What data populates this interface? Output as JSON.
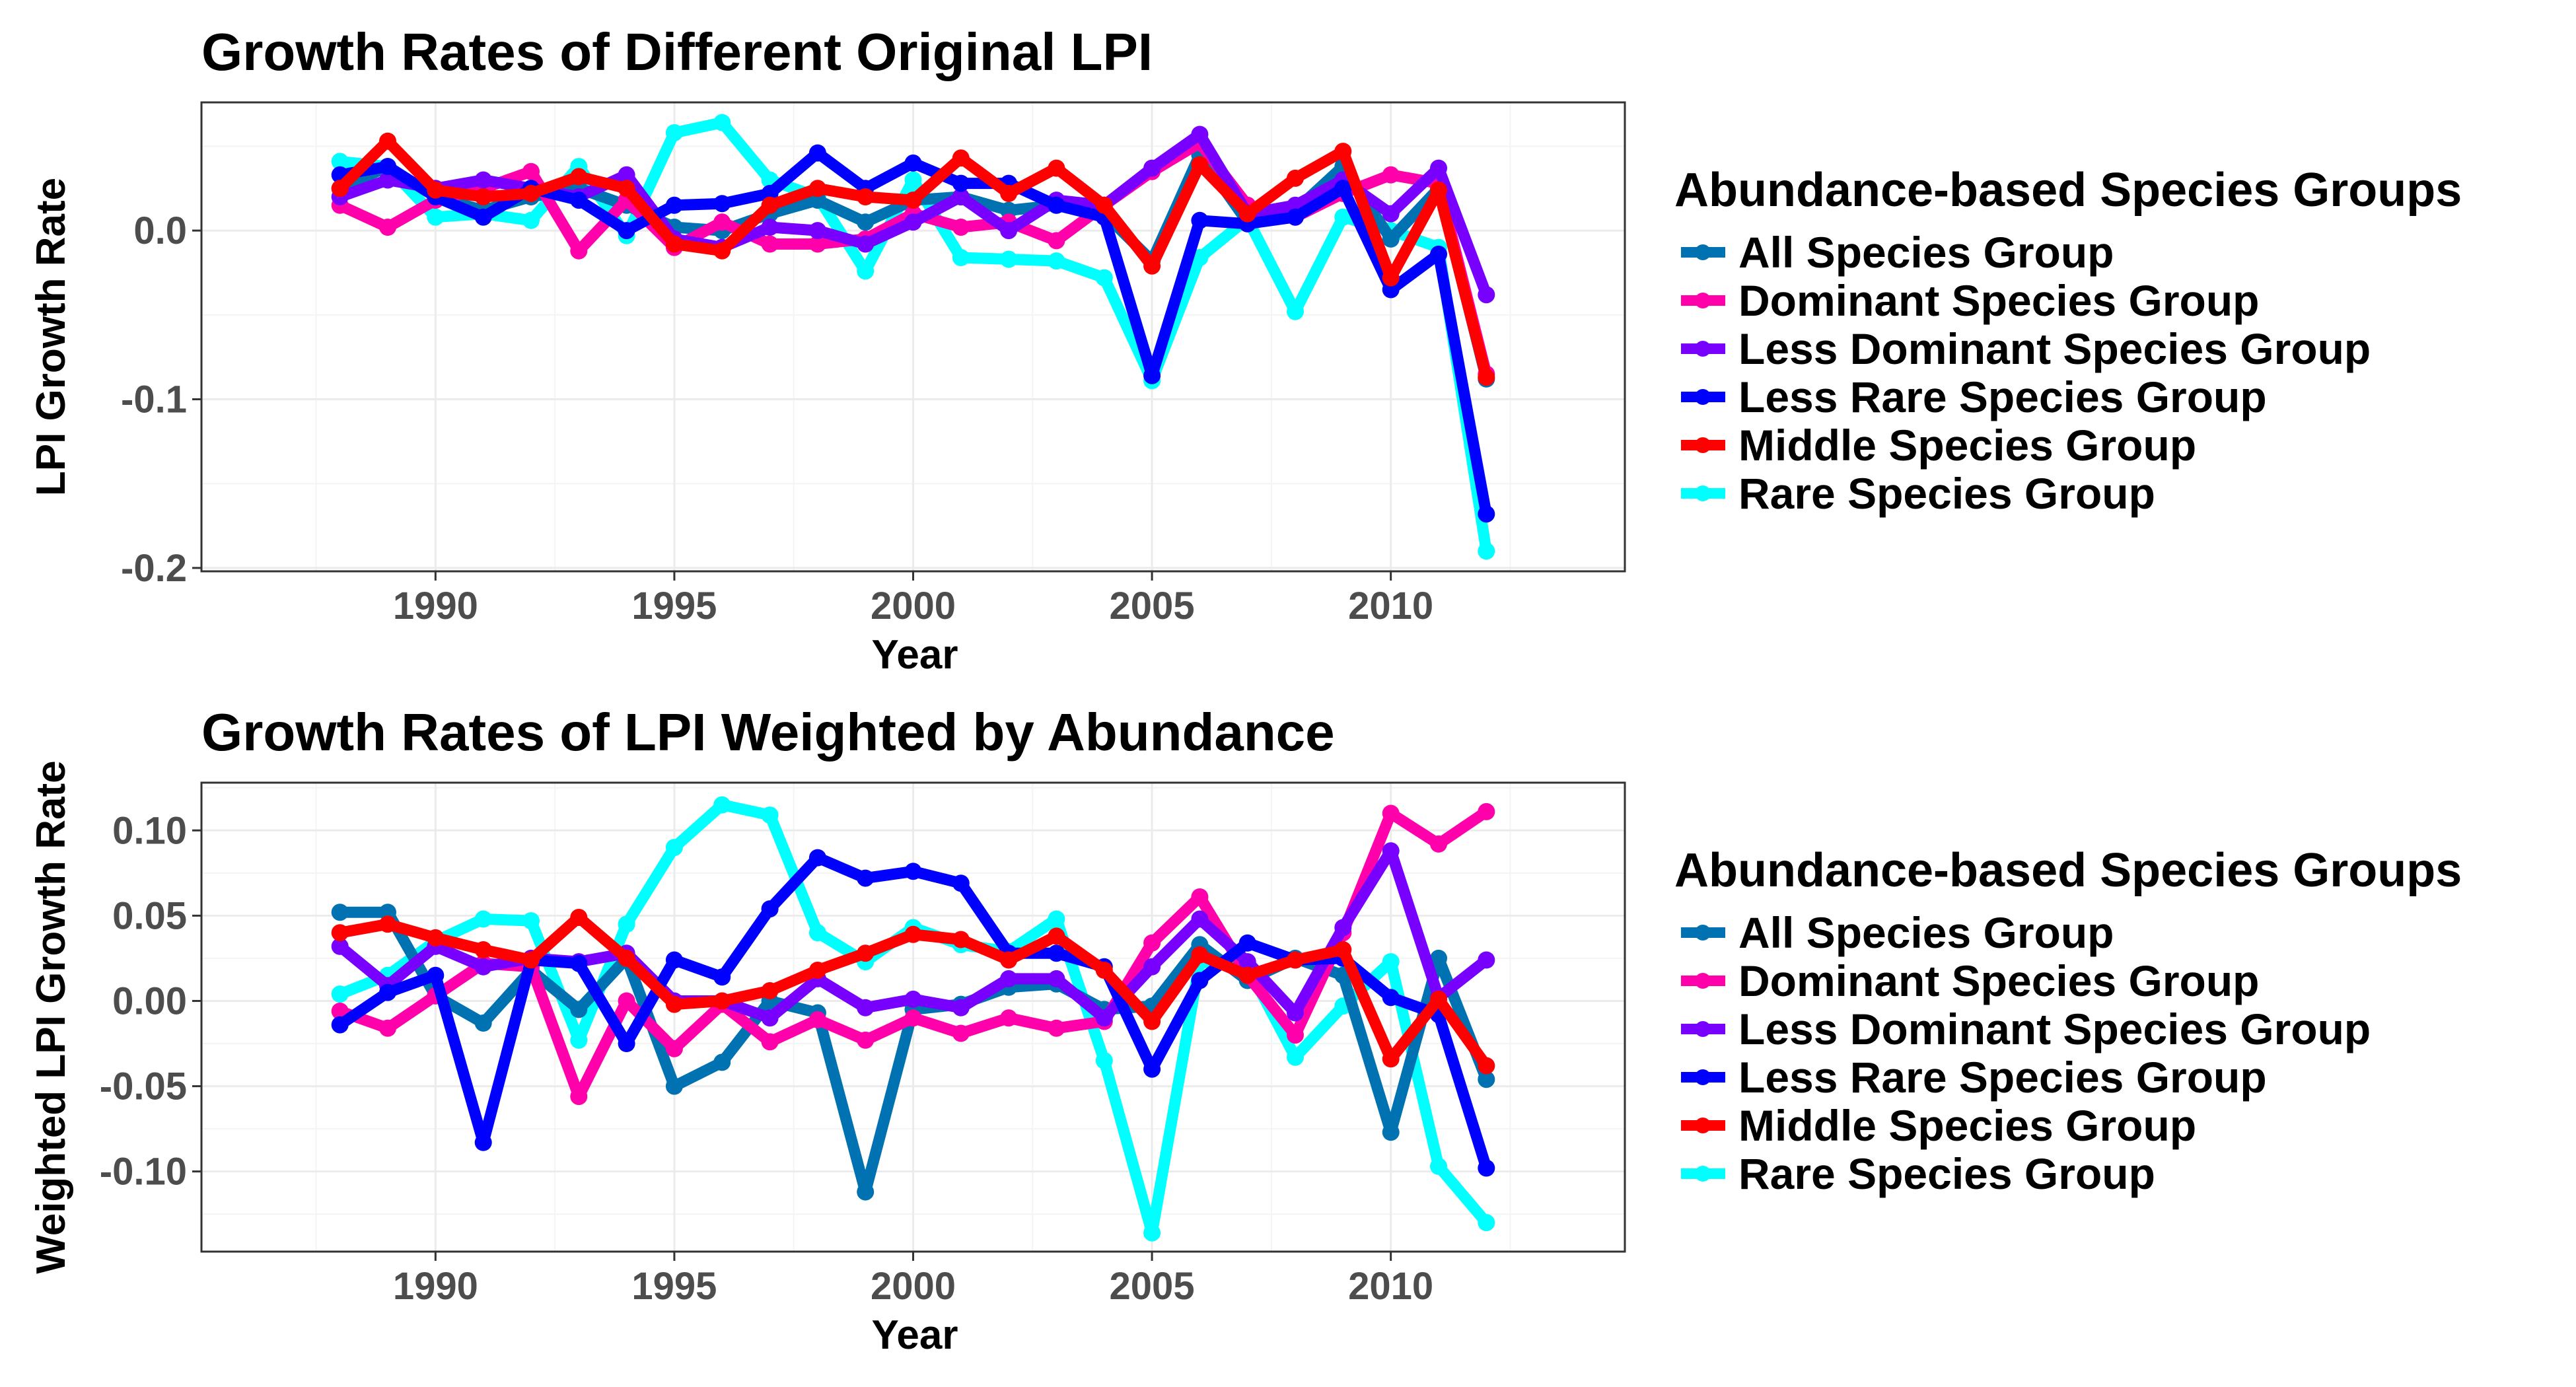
{
  "chart_data": [
    {
      "type": "line",
      "title": "Growth Rates of Different Original LPI",
      "xlabel": "Year",
      "ylabel": "LPI Growth Rate",
      "x": [
        1988,
        1989,
        1990,
        1991,
        1992,
        1993,
        1994,
        1995,
        1996,
        1997,
        1998,
        1999,
        2000,
        2001,
        2002,
        2003,
        2004,
        2005,
        2006,
        2007,
        2008,
        2009,
        2010,
        2011,
        2012
      ],
      "xlim": [
        1985.1,
        2014.9
      ],
      "ylim": [
        -0.202,
        0.076
      ],
      "xticks": [
        1990,
        1995,
        2000,
        2005,
        2010
      ],
      "yticks": [
        0.0,
        -0.1,
        -0.2
      ],
      "ytick_labels": [
        "0.0",
        "-0.1",
        "-0.2"
      ],
      "grid": true,
      "legend_title": "Abundance-based Species Groups",
      "legend_position": "right",
      "series": [
        {
          "name": "All Species Group",
          "color": "#0072B2",
          "values": [
            0.025,
            0.038,
            0.02,
            0.012,
            0.02,
            0.025,
            0.015,
            0.002,
            0.0,
            0.01,
            0.018,
            0.005,
            0.018,
            0.02,
            0.012,
            0.015,
            0.01,
            -0.018,
            0.045,
            0.005,
            0.012,
            0.038,
            -0.005,
            0.025,
            -0.088
          ]
        },
        {
          "name": "Dominant Species Group",
          "color": "#FF00AA",
          "values": [
            0.015,
            0.002,
            0.018,
            0.025,
            0.035,
            -0.012,
            0.018,
            -0.01,
            0.005,
            -0.008,
            -0.008,
            -0.005,
            0.01,
            0.002,
            0.005,
            -0.006,
            0.015,
            0.035,
            0.052,
            0.015,
            0.008,
            0.022,
            0.033,
            0.028,
            -0.085
          ]
        },
        {
          "name": "Less Dominant Species Group",
          "color": "#7700FF",
          "values": [
            0.02,
            0.03,
            0.025,
            0.03,
            0.025,
            0.02,
            0.033,
            -0.005,
            -0.01,
            0.002,
            0.0,
            -0.008,
            0.005,
            0.02,
            0.0,
            0.018,
            0.015,
            0.037,
            0.057,
            0.01,
            0.015,
            0.03,
            0.01,
            0.037,
            -0.038
          ]
        },
        {
          "name": "Less Rare Species Group",
          "color": "#0000FF",
          "values": [
            0.033,
            0.038,
            0.02,
            0.008,
            0.025,
            0.018,
            0.0,
            0.015,
            0.016,
            0.022,
            0.046,
            0.025,
            0.04,
            0.028,
            0.028,
            0.015,
            0.008,
            -0.086,
            0.006,
            0.004,
            0.008,
            0.025,
            -0.035,
            -0.014,
            -0.168
          ]
        },
        {
          "name": "Middle Species Group",
          "color": "#FF0000",
          "values": [
            0.025,
            0.053,
            0.024,
            0.02,
            0.022,
            0.032,
            0.025,
            -0.008,
            -0.012,
            0.015,
            0.025,
            0.02,
            0.018,
            0.043,
            0.022,
            0.037,
            0.015,
            -0.021,
            0.039,
            0.01,
            0.031,
            0.047,
            -0.028,
            0.024,
            -0.087
          ]
        },
        {
          "name": "Rare Species Group",
          "color": "#00FFFF",
          "values": [
            0.041,
            0.038,
            0.008,
            0.01,
            0.006,
            0.038,
            -0.003,
            0.058,
            0.064,
            0.03,
            0.02,
            -0.024,
            0.03,
            -0.016,
            -0.017,
            -0.018,
            -0.028,
            -0.089,
            -0.016,
            0.007,
            -0.048,
            0.008,
            0.0,
            -0.01,
            -0.19
          ]
        }
      ]
    },
    {
      "type": "line",
      "title": "Growth Rates of LPI Weighted by Abundance",
      "xlabel": "Year",
      "ylabel": "Weighted LPI Growth Rate",
      "x": [
        1988,
        1989,
        1990,
        1991,
        1992,
        1993,
        1994,
        1995,
        1996,
        1997,
        1998,
        1999,
        2000,
        2001,
        2002,
        2003,
        2004,
        2005,
        2006,
        2007,
        2008,
        2009,
        2010,
        2011,
        2012
      ],
      "xlim": [
        1985.1,
        2014.9
      ],
      "ylim": [
        -0.147,
        0.128
      ],
      "xticks": [
        1990,
        1995,
        2000,
        2005,
        2010
      ],
      "yticks": [
        0.1,
        0.05,
        0.0,
        -0.05,
        -0.1
      ],
      "ytick_labels": [
        "0.10",
        "0.05",
        "0.00",
        "-0.05",
        "-0.10"
      ],
      "grid": true,
      "legend_title": "Abundance-based Species Groups",
      "legend_position": "right",
      "series": [
        {
          "name": "All Species Group",
          "color": "#0072B2",
          "values": [
            0.052,
            0.052,
            0.003,
            -0.013,
            0.018,
            -0.005,
            0.025,
            -0.05,
            -0.036,
            0.0,
            -0.007,
            -0.112,
            -0.005,
            -0.002,
            0.008,
            0.01,
            -0.005,
            -0.003,
            0.033,
            0.012,
            0.025,
            0.015,
            -0.077,
            0.025,
            -0.046
          ]
        },
        {
          "name": "Dominant Species Group",
          "color": "#FF00AA",
          "values": [
            -0.006,
            -0.016,
            0.003,
            0.022,
            0.02,
            -0.056,
            0.0,
            -0.028,
            -0.002,
            -0.024,
            -0.011,
            -0.023,
            -0.01,
            -0.019,
            -0.01,
            -0.016,
            -0.012,
            0.034,
            0.061,
            0.015,
            -0.02,
            0.04,
            0.11,
            0.092,
            0.111
          ]
        },
        {
          "name": "Less Dominant Species Group",
          "color": "#7700FF",
          "values": [
            0.032,
            0.009,
            0.032,
            0.02,
            0.025,
            0.023,
            0.028,
            0.0,
            0.0,
            -0.01,
            0.013,
            -0.004,
            0.001,
            -0.004,
            0.013,
            0.013,
            -0.01,
            0.02,
            0.048,
            0.023,
            -0.007,
            0.043,
            0.088,
            0.002,
            0.024
          ]
        },
        {
          "name": "Less Rare Species Group",
          "color": "#0000FF",
          "values": [
            -0.014,
            0.005,
            0.015,
            -0.083,
            0.024,
            0.022,
            -0.025,
            0.024,
            0.014,
            0.054,
            0.084,
            0.072,
            0.076,
            0.069,
            0.028,
            0.028,
            0.02,
            -0.04,
            0.012,
            0.034,
            0.024,
            0.025,
            0.002,
            -0.008,
            -0.098
          ]
        },
        {
          "name": "Middle Species Group",
          "color": "#FF0000",
          "values": [
            0.04,
            0.045,
            0.037,
            0.03,
            0.024,
            0.049,
            0.025,
            -0.002,
            0.0,
            0.006,
            0.018,
            0.028,
            0.039,
            0.036,
            0.024,
            0.038,
            0.018,
            -0.012,
            0.027,
            0.015,
            0.024,
            0.03,
            -0.034,
            0.001,
            -0.038
          ]
        },
        {
          "name": "Rare Species Group",
          "color": "#00FFFF",
          "values": [
            0.004,
            0.015,
            0.035,
            0.048,
            0.047,
            -0.023,
            0.045,
            0.09,
            0.115,
            0.109,
            0.04,
            0.023,
            0.043,
            0.033,
            0.029,
            0.048,
            -0.035,
            -0.136,
            0.023,
            0.02,
            -0.033,
            -0.003,
            0.023,
            -0.097,
            -0.13
          ]
        }
      ]
    }
  ]
}
